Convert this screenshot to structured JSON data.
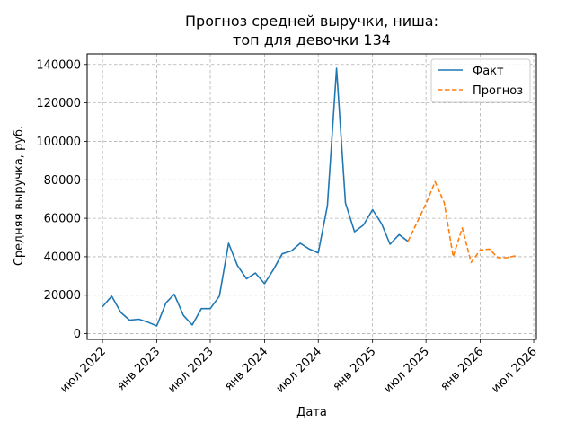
{
  "chart_data": {
    "type": "line",
    "title": "Прогноз средней выручки, ниша:",
    "subtitle": "топ для девочки 134",
    "xlabel": "Дата",
    "ylabel": "Средняя выручка, руб.",
    "grid": true,
    "legend_position": "top-right",
    "x_ticks": [
      {
        "date": "2022-07-01",
        "label": "июл 2022"
      },
      {
        "date": "2023-01-01",
        "label": "янв 2023"
      },
      {
        "date": "2023-07-01",
        "label": "июл 2023"
      },
      {
        "date": "2024-01-01",
        "label": "янв 2024"
      },
      {
        "date": "2024-07-01",
        "label": "июл 2024"
      },
      {
        "date": "2025-01-01",
        "label": "янв 2025"
      },
      {
        "date": "2025-07-01",
        "label": "июл 2025"
      },
      {
        "date": "2026-01-01",
        "label": "янв 2026"
      },
      {
        "date": "2026-07-01",
        "label": "июл 2026"
      }
    ],
    "y_ticks": [
      0,
      20000,
      40000,
      60000,
      80000,
      100000,
      120000,
      140000
    ],
    "y_tick_labels": [
      "0",
      "20000",
      "40000",
      "60000",
      "80000",
      "100000",
      "120000",
      "140000"
    ],
    "xlim": [
      "2022-05-10",
      "2026-07-10"
    ],
    "ylim": [
      -3000,
      145500
    ],
    "series": [
      {
        "name": "Факт",
        "color": "#1f77b4",
        "style": "solid",
        "points": [
          [
            "2022-07-01",
            14000
          ],
          [
            "2022-08-01",
            19500
          ],
          [
            "2022-09-01",
            11000
          ],
          [
            "2022-10-01",
            7000
          ],
          [
            "2022-11-01",
            7500
          ],
          [
            "2022-12-01",
            6000
          ],
          [
            "2023-01-01",
            4000
          ],
          [
            "2023-02-01",
            16000
          ],
          [
            "2023-03-01",
            20500
          ],
          [
            "2023-04-01",
            9500
          ],
          [
            "2023-05-01",
            4500
          ],
          [
            "2023-06-01",
            13000
          ],
          [
            "2023-07-01",
            13000
          ],
          [
            "2023-08-01",
            19500
          ],
          [
            "2023-09-01",
            47000
          ],
          [
            "2023-10-01",
            35500
          ],
          [
            "2023-11-01",
            28500
          ],
          [
            "2023-12-01",
            31500
          ],
          [
            "2024-01-01",
            26000
          ],
          [
            "2024-02-01",
            33500
          ],
          [
            "2024-03-01",
            41500
          ],
          [
            "2024-04-01",
            43000
          ],
          [
            "2024-05-01",
            47000
          ],
          [
            "2024-06-01",
            44000
          ],
          [
            "2024-07-01",
            42000
          ],
          [
            "2024-08-01",
            66500
          ],
          [
            "2024-09-01",
            138000
          ],
          [
            "2024-10-01",
            68000
          ],
          [
            "2024-11-01",
            53000
          ],
          [
            "2024-12-01",
            56500
          ],
          [
            "2025-01-01",
            64500
          ],
          [
            "2025-02-01",
            57000
          ],
          [
            "2025-03-01",
            46500
          ],
          [
            "2025-04-01",
            51500
          ],
          [
            "2025-05-01",
            48000
          ]
        ]
      },
      {
        "name": "Прогноз",
        "color": "#ff7f0e",
        "style": "dashed",
        "points": [
          [
            "2025-05-01",
            48000
          ],
          [
            "2025-06-01",
            58000
          ],
          [
            "2025-07-01",
            67500
          ],
          [
            "2025-08-01",
            79000
          ],
          [
            "2025-09-01",
            68000
          ],
          [
            "2025-10-01",
            40000
          ],
          [
            "2025-11-01",
            55000
          ],
          [
            "2025-12-01",
            37000
          ],
          [
            "2026-01-01",
            43500
          ],
          [
            "2026-02-01",
            44000
          ],
          [
            "2026-03-01",
            39500
          ],
          [
            "2026-04-01",
            39500
          ],
          [
            "2026-05-01",
            40500
          ]
        ]
      }
    ]
  }
}
